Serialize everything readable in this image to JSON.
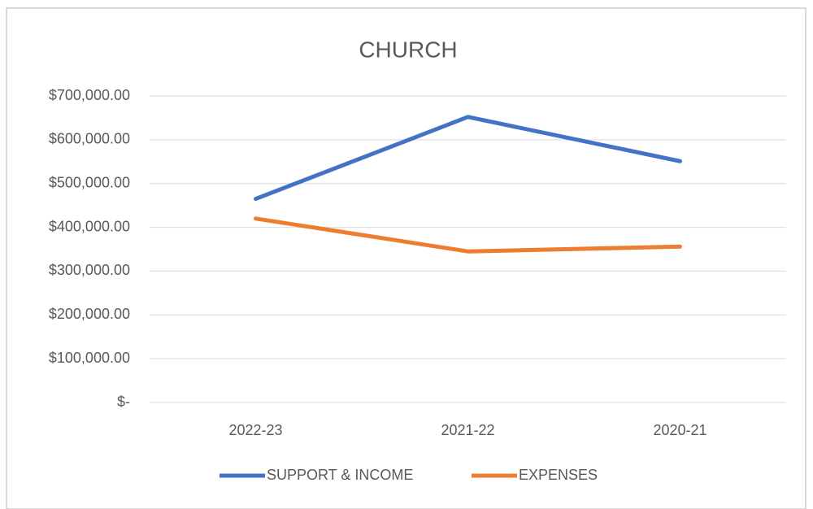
{
  "chart_data": {
    "type": "line",
    "title": "CHURCH",
    "categories": [
      "2022-23",
      "2021-22",
      "2020-21"
    ],
    "series": [
      {
        "name": "SUPPORT & INCOME",
        "color": "#4472c4",
        "values": [
          465000,
          652000,
          551000
        ]
      },
      {
        "name": "EXPENSES",
        "color": "#ed7d31",
        "values": [
          420000,
          345000,
          356000
        ]
      }
    ],
    "ylim": [
      0,
      700000
    ],
    "yticks": [
      {
        "value": 0,
        "label": "$-"
      },
      {
        "value": 100000,
        "label": "$100,000.00"
      },
      {
        "value": 200000,
        "label": "$200,000.00"
      },
      {
        "value": 300000,
        "label": "$300,000.00"
      },
      {
        "value": 400000,
        "label": "$400,000.00"
      },
      {
        "value": 500000,
        "label": "$500,000.00"
      },
      {
        "value": 600000,
        "label": "$600,000.00"
      },
      {
        "value": 700000,
        "label": "$700,000.00"
      }
    ],
    "grid": true,
    "legend": "bottom"
  }
}
